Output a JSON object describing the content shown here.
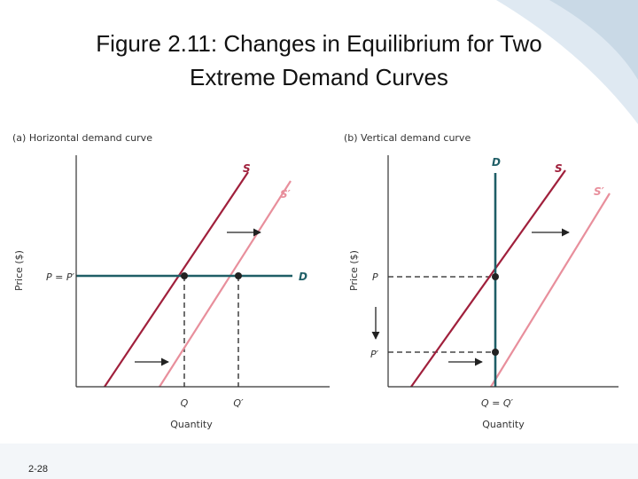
{
  "slide": {
    "title_line1": "Figure 2.11: Changes in Equilibrium for Two",
    "title_line2": "Extreme Demand Curves",
    "slide_number": "2-28"
  },
  "colors": {
    "supply": "#a0203c",
    "supply_shifted": "#e88f9c",
    "demand": "#1f5e66",
    "guide": "#222222",
    "axis": "#333333",
    "background_accent": "#c9d9e6"
  },
  "chart_data": [
    {
      "type": "line",
      "title": "(a) Horizontal demand curve",
      "xlabel": "Quantity",
      "ylabel": "Price ($)",
      "xticks": [
        "Q",
        "Q′"
      ],
      "yticks": [
        "P = P′"
      ],
      "series": [
        {
          "name": "S",
          "role": "supply"
        },
        {
          "name": "S′",
          "role": "supply_shifted"
        },
        {
          "name": "D",
          "role": "demand",
          "orientation": "horizontal"
        }
      ],
      "equilibria": [
        {
          "before": true,
          "quantity": "Q",
          "price": "P"
        },
        {
          "before": false,
          "quantity": "Q′",
          "price": "P′"
        }
      ],
      "annotations": [
        "rightward shift arrows from S to S′"
      ]
    },
    {
      "type": "line",
      "title": "(b) Vertical demand curve",
      "xlabel": "Quantity",
      "ylabel": "Price ($)",
      "xticks": [
        "Q = Q′"
      ],
      "yticks": [
        "P",
        "P′"
      ],
      "series": [
        {
          "name": "D",
          "role": "demand",
          "orientation": "vertical"
        },
        {
          "name": "S",
          "role": "supply"
        },
        {
          "name": "S′",
          "role": "supply_shifted"
        }
      ],
      "equilibria": [
        {
          "before": true,
          "quantity": "Q",
          "price": "P"
        },
        {
          "before": false,
          "quantity": "Q′",
          "price": "P′"
        }
      ],
      "annotations": [
        "rightward shift arrows from S to S′",
        "downward arrow from P to P′"
      ]
    }
  ]
}
